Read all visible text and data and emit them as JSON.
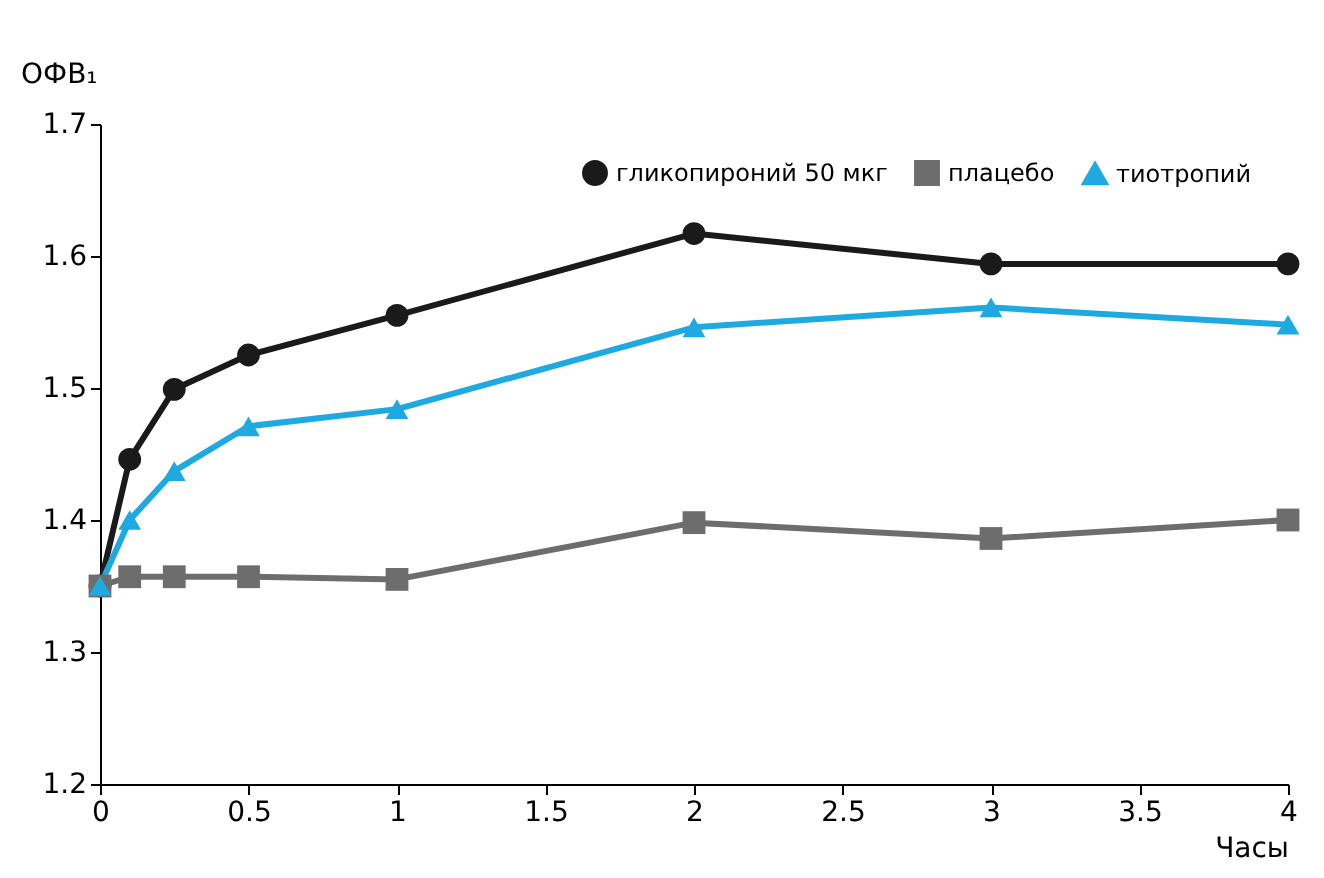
{
  "chart_data": {
    "type": "line",
    "ylabel": "ОФВ₁",
    "xlabel": "Часы",
    "xlim": [
      0,
      4
    ],
    "xticks": [
      0,
      0.5,
      1,
      1.5,
      2,
      2.5,
      3,
      3.5,
      4
    ],
    "ylim": [
      1.2,
      1.7
    ],
    "yticks": [
      1.2,
      1.3,
      1.4,
      1.5,
      1.6,
      1.7
    ],
    "grid": false,
    "legend": "top right",
    "line_style": "solid",
    "series": [
      {
        "name": "гликопироний 50 мкг",
        "color": "#1a1a1a",
        "marker": "circle",
        "x": [
          0,
          0.1,
          0.25,
          0.5,
          1,
          2,
          3,
          4
        ],
        "values": [
          1.35,
          1.446,
          1.499,
          1.525,
          1.555,
          1.617,
          1.594,
          1.594
        ]
      },
      {
        "name": "плацебо",
        "color": "#6d6d6d",
        "marker": "square",
        "x": [
          0,
          0.1,
          0.25,
          0.5,
          1,
          2,
          3,
          4
        ],
        "values": [
          1.35,
          1.357,
          1.357,
          1.357,
          1.355,
          1.398,
          1.386,
          1.4
        ]
      },
      {
        "name": "тиотропий",
        "color": "#1fa9e1",
        "marker": "triangle",
        "x": [
          0,
          0.1,
          0.25,
          0.5,
          1,
          2,
          3,
          4
        ],
        "values": [
          1.35,
          1.4,
          1.437,
          1.471,
          1.484,
          1.546,
          1.561,
          1.548
        ]
      }
    ]
  }
}
